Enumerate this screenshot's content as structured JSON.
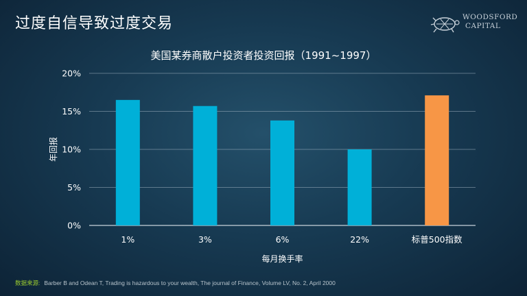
{
  "slide": {
    "title": "过度自信导致过度交易",
    "logo": {
      "line1": "Woodsford",
      "line2": "Capital"
    }
  },
  "source": {
    "label": "数据来源:",
    "text": "Barber  B and Odean  T, Trading  is hazardous to your wealth,  The journal of Finance, Volume LV, No. 2, April  2000"
  },
  "colors": {
    "bar": "#00b0d8",
    "highlight": "#f79646",
    "grid": "#9fb2c0"
  },
  "chart_data": {
    "type": "bar",
    "title": "美国某券商散户投资者投资回报（1991~1997）",
    "xlabel": "每月换手率",
    "ylabel": "年回报",
    "categories": [
      "1%",
      "3%",
      "6%",
      "22%",
      "标普500指数"
    ],
    "values": [
      16.5,
      15.7,
      13.8,
      10.0,
      17.1
    ],
    "highlight_index": 4,
    "ylim": [
      0,
      20
    ],
    "yticks": [
      "0%",
      "5%",
      "10%",
      "15%",
      "20%"
    ],
    "ytick_values": [
      0,
      5,
      10,
      15,
      20
    ],
    "grid": true
  }
}
